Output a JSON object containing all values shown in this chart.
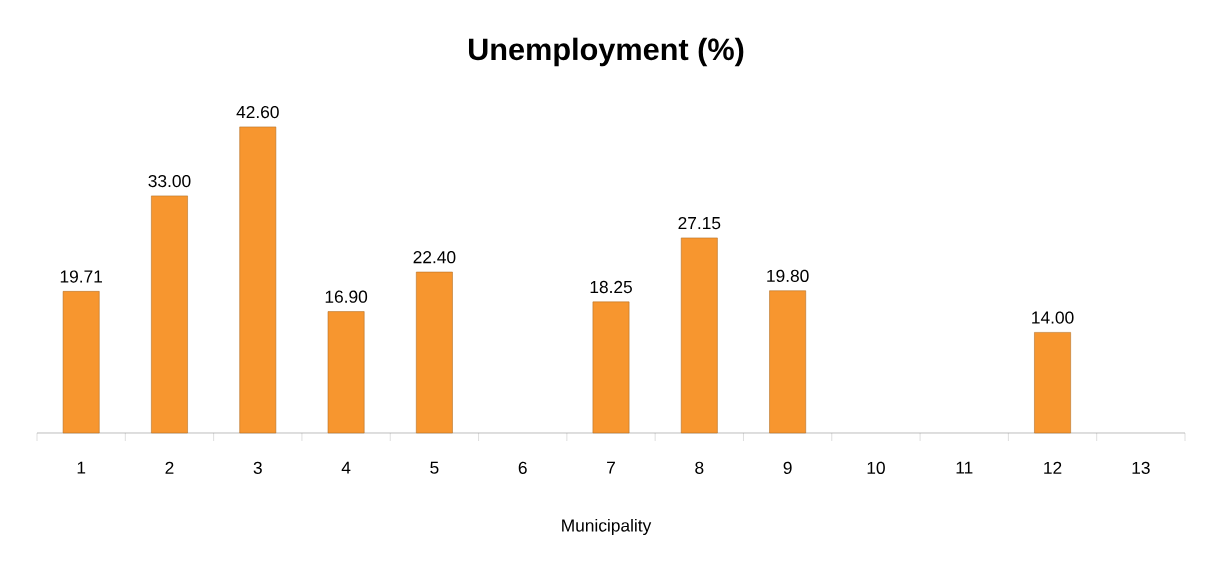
{
  "chart_data": {
    "type": "bar",
    "title": "Unemployment (%)",
    "xlabel": "Municipality",
    "categories": [
      "1",
      "2",
      "3",
      "4",
      "5",
      "6",
      "7",
      "8",
      "9",
      "10",
      "11",
      "12",
      "13"
    ],
    "values": [
      19.71,
      33.0,
      42.6,
      16.9,
      22.4,
      null,
      18.25,
      27.15,
      19.8,
      null,
      null,
      14.0,
      null
    ],
    "value_labels": [
      "19.71",
      "33.00",
      "42.60",
      "16.90",
      "22.40",
      null,
      "18.25",
      "27.15",
      "19.80",
      null,
      null,
      "14.00",
      null
    ],
    "color": "#f7962f"
  }
}
